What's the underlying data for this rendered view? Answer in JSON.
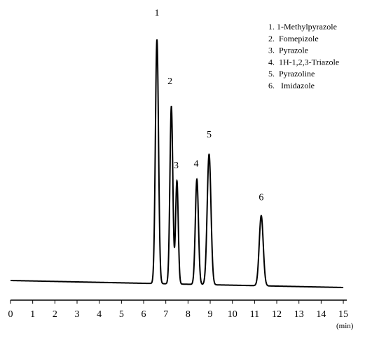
{
  "chart_data": {
    "type": "line",
    "title": "",
    "xlabel": "",
    "x_unit": "(min)",
    "ylabel": "",
    "xlim": [
      0,
      15
    ],
    "xticks": [
      0,
      1,
      2,
      3,
      4,
      5,
      6,
      7,
      8,
      9,
      10,
      11,
      12,
      13,
      14,
      15
    ],
    "grid": false,
    "legend_position": "top-right",
    "legend": [
      "1. 1-Methylpyrazole",
      "2.  Fomepizole",
      "3.  Pyrazole",
      "4.  1H-1,2,3-Triazole",
      "5.  Pyrazoline",
      "6.   Imidazole"
    ],
    "peaks": [
      {
        "label": "1",
        "retention_time": 6.6,
        "height": 348,
        "width": 0.07
      },
      {
        "label": "2",
        "retention_time": 7.25,
        "height": 253,
        "width": 0.065
      },
      {
        "label": "3",
        "retention_time": 7.5,
        "height": 147,
        "width": 0.06
      },
      {
        "label": "4",
        "retention_time": 8.4,
        "height": 150,
        "width": 0.07
      },
      {
        "label": "5",
        "retention_time": 8.95,
        "height": 186,
        "width": 0.085
      },
      {
        "label": "6",
        "retention_time": 11.3,
        "height": 100,
        "width": 0.09
      }
    ],
    "baseline": {
      "start": 0,
      "end": -10
    }
  }
}
